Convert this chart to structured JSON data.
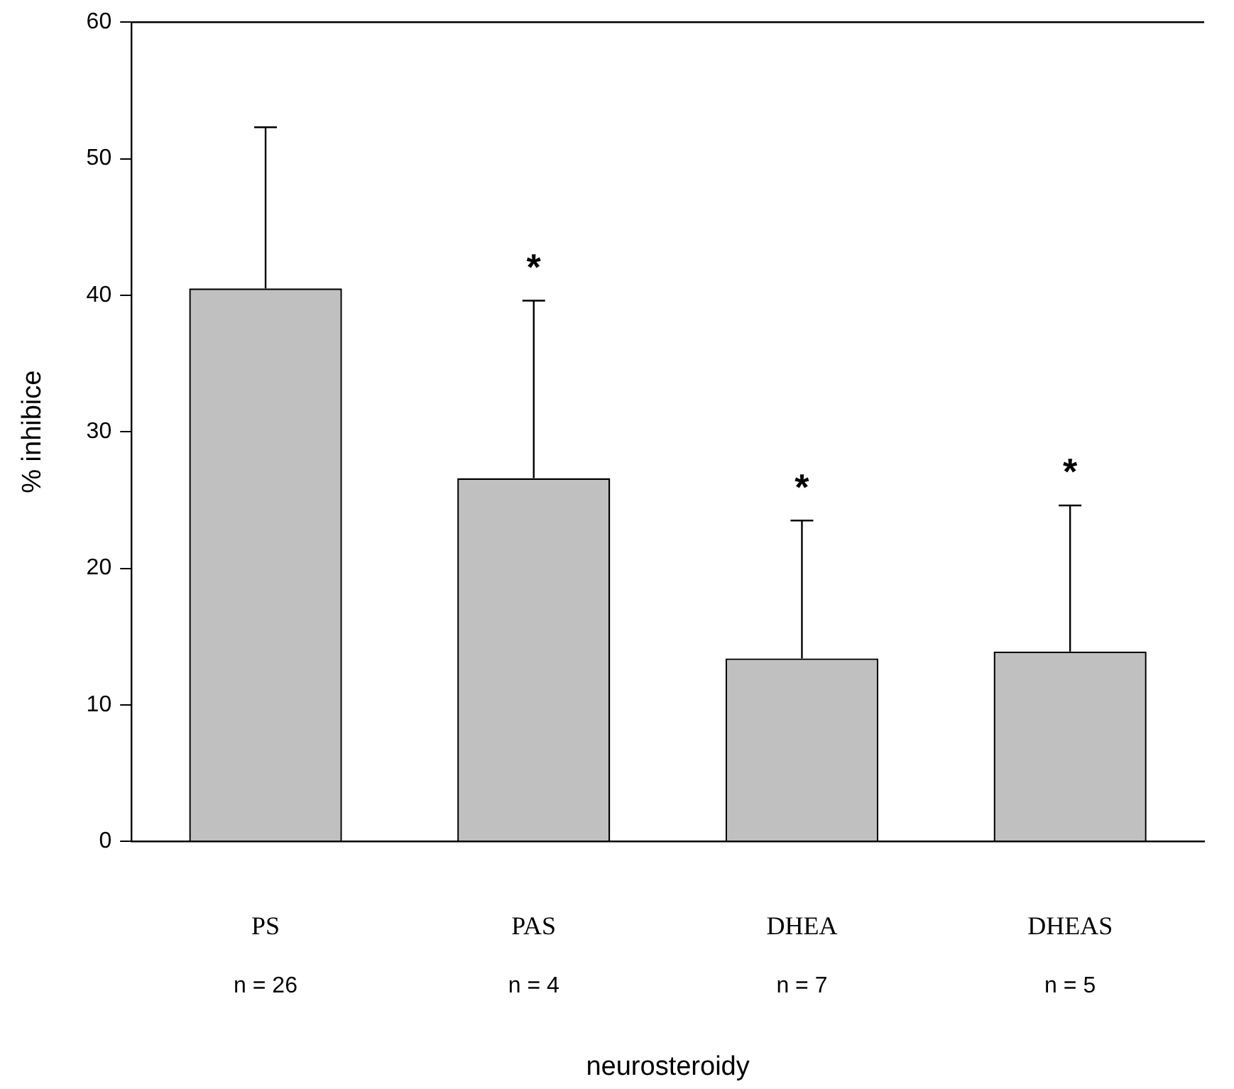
{
  "chart_data": {
    "type": "bar",
    "xlabel": "neurosteroidy",
    "ylabel": "% inhibice",
    "categories": [
      "PS",
      "PAS",
      "DHEA",
      "DHEAS"
    ],
    "values": [
      40.5,
      26.6,
      13.4,
      13.9
    ],
    "color": "#c0c0c0",
    "errors": [
      [
        40.5,
        52.3
      ],
      [
        26.6,
        39.6
      ],
      [
        13.4,
        23.5
      ],
      [
        13.9,
        24.6
      ]
    ],
    "ylim": [
      0,
      60
    ],
    "yticks": [
      0,
      10,
      20,
      30,
      40,
      50,
      60
    ],
    "grid": false,
    "legend": false,
    "annotations": [
      "*",
      "*",
      "*",
      "n = 26",
      "n = 4",
      "n = 7",
      "n = 5"
    ]
  }
}
